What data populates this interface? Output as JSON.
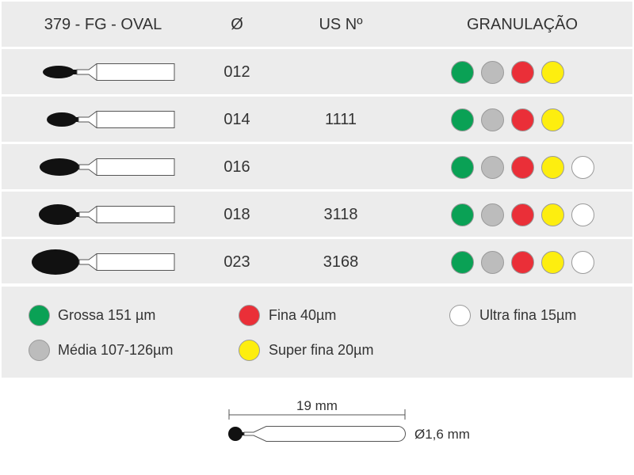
{
  "header": {
    "model": "379 - FG - OVAL",
    "diameter": "Ø",
    "us_number": "US Nº",
    "grit": "GRANULAÇÃO"
  },
  "rows": [
    {
      "diameter": "012",
      "us": "",
      "grits": [
        "green",
        "grey",
        "red",
        "yellow"
      ]
    },
    {
      "diameter": "014",
      "us": "1111",
      "grits": [
        "green",
        "grey",
        "red",
        "yellow"
      ]
    },
    {
      "diameter": "016",
      "us": "",
      "grits": [
        "green",
        "grey",
        "red",
        "yellow",
        "white"
      ]
    },
    {
      "diameter": "018",
      "us": "3118",
      "grits": [
        "green",
        "grey",
        "red",
        "yellow",
        "white"
      ]
    },
    {
      "diameter": "023",
      "us": "3168",
      "grits": [
        "green",
        "grey",
        "red",
        "yellow",
        "white"
      ]
    }
  ],
  "legend": [
    {
      "color": "green",
      "label": "Grossa 151 µm"
    },
    {
      "color": "red",
      "label": "Fina 40µm"
    },
    {
      "color": "white",
      "label": "Ultra fina 15µm"
    },
    {
      "color": "grey",
      "label": "Média 107-126µm"
    },
    {
      "color": "yellow",
      "label": "Super fina 20µm"
    }
  ],
  "colors": {
    "green": "#0aa155",
    "grey": "#bcbcbc",
    "red": "#ea2f38",
    "yellow": "#fdee0f",
    "white": "#ffffff",
    "band": "#ececec",
    "text": "#333333"
  },
  "dimension": {
    "length": "19 mm",
    "shank_diameter": "Ø1,6 mm"
  }
}
